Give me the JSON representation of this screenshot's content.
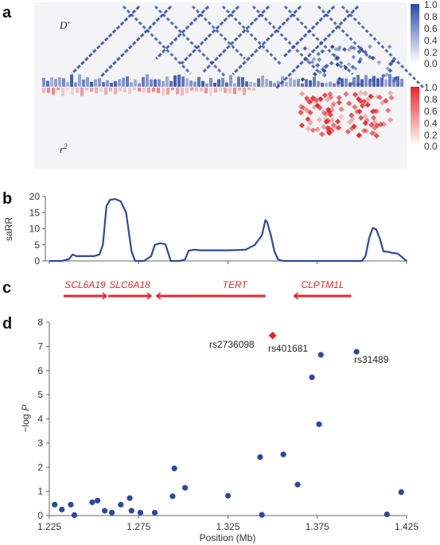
{
  "panels": {
    "a": "a",
    "b": "b",
    "c": "c",
    "d": "d"
  },
  "heatmap": {
    "top_label": "D′",
    "bottom_label_base": "r",
    "bottom_label_sup": "2",
    "dprime_color": "#2b48a6",
    "r2_color": "#e8262a",
    "dprime_scale_ticks": [
      "1.0",
      "0.8",
      "0.6",
      "0.4",
      "0.2",
      "0.0"
    ],
    "r2_scale_ticks": [
      "1.0",
      "0.8",
      "0.6",
      "0.4",
      "0.2",
      "0.0"
    ]
  },
  "chart_data": [
    {
      "type": "line",
      "ylabel": "saRR",
      "ylim": [
        0,
        20
      ],
      "yticks": [
        "20",
        "15",
        "10",
        "5",
        "0"
      ],
      "line_color": "#2b48a6",
      "series": [
        {
          "x": [
            1.225,
            1.232,
            1.236,
            1.238,
            1.24,
            1.245,
            1.25,
            1.253,
            1.255,
            1.257,
            1.259,
            1.262,
            1.265,
            1.268,
            1.271,
            1.273,
            1.276,
            1.278,
            1.282,
            1.284,
            1.287,
            1.29,
            1.293,
            1.296,
            1.298,
            1.301,
            1.303,
            1.306,
            1.31,
            1.315,
            1.325,
            1.335,
            1.34,
            1.344,
            1.346,
            1.347,
            1.349,
            1.351,
            1.353,
            1.356,
            1.36,
            1.37,
            1.38,
            1.385,
            1.39,
            1.4,
            1.402,
            1.404,
            1.406,
            1.408,
            1.41,
            1.412,
            1.415,
            1.417,
            1.42,
            1.425
          ],
          "y": [
            0,
            0,
            0.6,
            2,
            1.5,
            1.5,
            1.5,
            2,
            5,
            17,
            19,
            19.2,
            18.5,
            15,
            3,
            0,
            0,
            0,
            1.5,
            5,
            5.5,
            5.2,
            0,
            0,
            0,
            0.5,
            3.2,
            3.5,
            3.3,
            3.3,
            3.3,
            3.5,
            5,
            8,
            12.7,
            12,
            8,
            3,
            0.5,
            0,
            0,
            0,
            0,
            0,
            0,
            0,
            1.5,
            7,
            10.2,
            9.8,
            7,
            3,
            2.8,
            2.5,
            2.3,
            0
          ]
        }
      ]
    },
    {
      "type": "scatter",
      "xlabel": "Position (Mb)",
      "ylabel": "−log P",
      "ylabel_main": "−log",
      "ylabel_var": "P",
      "xlim": [
        1.225,
        1.425
      ],
      "ylim": [
        0,
        8
      ],
      "xticks": [
        "1.225",
        "1.275",
        "1.325",
        "1.375",
        "1.425"
      ],
      "xtick_values": [
        1.225,
        1.275,
        1.325,
        1.375,
        1.425
      ],
      "yticks": [
        "0",
        "1",
        "2",
        "3",
        "4",
        "5",
        "6",
        "7",
        "8"
      ],
      "point_color": "#2b48a6",
      "highlight_color": "#e8262a",
      "points": [
        {
          "x": 1.228,
          "y": 0.45
        },
        {
          "x": 1.232,
          "y": 0.25
        },
        {
          "x": 1.237,
          "y": 0.45
        },
        {
          "x": 1.239,
          "y": 0.02
        },
        {
          "x": 1.249,
          "y": 0.55
        },
        {
          "x": 1.252,
          "y": 0.62
        },
        {
          "x": 1.256,
          "y": 0.2
        },
        {
          "x": 1.26,
          "y": 0.12
        },
        {
          "x": 1.265,
          "y": 0.45
        },
        {
          "x": 1.27,
          "y": 0.72
        },
        {
          "x": 1.271,
          "y": 0.2
        },
        {
          "x": 1.276,
          "y": 0.12
        },
        {
          "x": 1.284,
          "y": 0.12
        },
        {
          "x": 1.294,
          "y": 0.8
        },
        {
          "x": 1.295,
          "y": 1.95
        },
        {
          "x": 1.301,
          "y": 1.15
        },
        {
          "x": 1.325,
          "y": 0.82
        },
        {
          "x": 1.343,
          "y": 2.42
        },
        {
          "x": 1.344,
          "y": 0.03
        },
        {
          "x": 1.356,
          "y": 2.53
        },
        {
          "x": 1.364,
          "y": 1.28
        },
        {
          "x": 1.372,
          "y": 5.72
        },
        {
          "x": 1.376,
          "y": 3.78
        },
        {
          "x": 1.377,
          "y": 6.65
        },
        {
          "x": 1.397,
          "y": 6.78
        },
        {
          "x": 1.414,
          "y": 0.05
        },
        {
          "x": 1.422,
          "y": 0.97
        }
      ],
      "highlight_point": {
        "x": 1.35,
        "y": 7.45
      },
      "annotations": [
        "rs2736098",
        "rs401681",
        "rs31489"
      ]
    }
  ],
  "genes": [
    {
      "name": "SCL6A19",
      "start": 1.233,
      "end": 1.257,
      "direction": "right"
    },
    {
      "name": "SLC6A18",
      "start": 1.258,
      "end": 1.282,
      "direction": "right"
    },
    {
      "name": "TERT",
      "start": 1.285,
      "end": 1.346,
      "direction": "left"
    },
    {
      "name": "CLPTM1L",
      "start": 1.362,
      "end": 1.394,
      "direction": "left"
    }
  ]
}
